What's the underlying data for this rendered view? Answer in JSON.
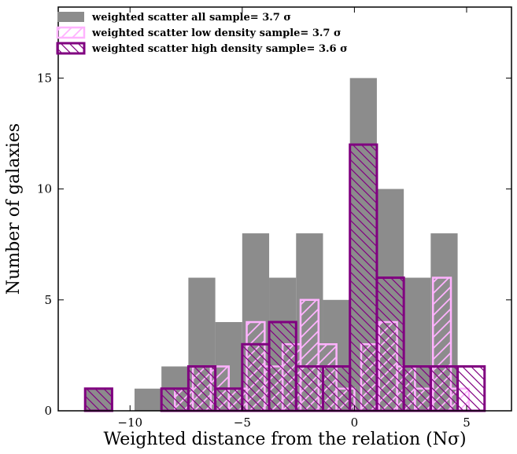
{
  "chart_data": {
    "type": "histogram",
    "xlabel": "Weighted distance from the relation (Nσ)",
    "ylabel": "Number of galaxies",
    "xlim": [
      -13.2,
      7.0
    ],
    "ylim": [
      0,
      18.2
    ],
    "xticks": [
      -10,
      -5,
      0,
      5
    ],
    "yticks": [
      0,
      5,
      10,
      15
    ],
    "colors": {
      "all": "#8c8c8c",
      "low": "#ffb3ff",
      "high": "#800080"
    },
    "legend": [
      {
        "series": "all",
        "label": "weighted scatter all sample= 3.7 σ"
      },
      {
        "series": "low",
        "label": "weighted scatter low density sample= 3.7 σ"
      },
      {
        "series": "high",
        "label": "weighted scatter high density sample= 3.6 σ"
      }
    ],
    "series": [
      {
        "name": "all",
        "style": "filled",
        "bins": [
          {
            "x0": -12.0,
            "x1": -10.8,
            "count": 1
          },
          {
            "x0": -9.8,
            "x1": -8.6,
            "count": 1
          },
          {
            "x0": -8.6,
            "x1": -7.4,
            "count": 2
          },
          {
            "x0": -7.4,
            "x1": -6.2,
            "count": 6
          },
          {
            "x0": -6.2,
            "x1": -5.0,
            "count": 4
          },
          {
            "x0": -5.0,
            "x1": -3.8,
            "count": 8
          },
          {
            "x0": -3.8,
            "x1": -2.6,
            "count": 6
          },
          {
            "x0": -2.6,
            "x1": -1.4,
            "count": 8
          },
          {
            "x0": -1.4,
            "x1": -0.2,
            "count": 5
          },
          {
            "x0": -0.2,
            "x1": 1.0,
            "count": 15
          },
          {
            "x0": 1.0,
            "x1": 2.2,
            "count": 10
          },
          {
            "x0": 2.2,
            "x1": 3.4,
            "count": 6
          },
          {
            "x0": 3.4,
            "x1": 4.6,
            "count": 8
          }
        ]
      },
      {
        "name": "low",
        "style": "hatch-forward",
        "bins": [
          {
            "x0": -8.0,
            "x1": -7.2,
            "count": 1
          },
          {
            "x0": -7.2,
            "x1": -6.4,
            "count": 2
          },
          {
            "x0": -6.4,
            "x1": -5.6,
            "count": 2
          },
          {
            "x0": -5.6,
            "x1": -4.8,
            "count": 1
          },
          {
            "x0": -4.8,
            "x1": -4.0,
            "count": 4
          },
          {
            "x0": -4.0,
            "x1": -3.2,
            "count": 2
          },
          {
            "x0": -3.2,
            "x1": -2.4,
            "count": 3
          },
          {
            "x0": -2.4,
            "x1": -1.6,
            "count": 5
          },
          {
            "x0": -1.6,
            "x1": -0.8,
            "count": 3
          },
          {
            "x0": -0.8,
            "x1": 0.0,
            "count": 1
          },
          {
            "x0": 0.3,
            "x1": 1.1,
            "count": 3
          },
          {
            "x0": 1.1,
            "x1": 1.9,
            "count": 4
          },
          {
            "x0": 1.9,
            "x1": 2.7,
            "count": 2
          },
          {
            "x0": 2.7,
            "x1": 3.5,
            "count": 1
          },
          {
            "x0": 3.5,
            "x1": 4.3,
            "count": 6
          },
          {
            "x0": 4.3,
            "x1": 5.1,
            "count": 1
          }
        ]
      },
      {
        "name": "high",
        "style": "hatch-back",
        "bins": [
          {
            "x0": -12.0,
            "x1": -10.8,
            "count": 1
          },
          {
            "x0": -8.6,
            "x1": -7.4,
            "count": 1
          },
          {
            "x0": -7.4,
            "x1": -6.2,
            "count": 2
          },
          {
            "x0": -6.2,
            "x1": -5.0,
            "count": 1
          },
          {
            "x0": -5.0,
            "x1": -3.8,
            "count": 3
          },
          {
            "x0": -3.8,
            "x1": -2.6,
            "count": 4
          },
          {
            "x0": -2.6,
            "x1": -1.4,
            "count": 2
          },
          {
            "x0": -1.4,
            "x1": -0.2,
            "count": 2
          },
          {
            "x0": -0.2,
            "x1": 1.0,
            "count": 12
          },
          {
            "x0": 1.0,
            "x1": 2.2,
            "count": 6
          },
          {
            "x0": 2.2,
            "x1": 3.4,
            "count": 2
          },
          {
            "x0": 3.4,
            "x1": 4.6,
            "count": 2
          },
          {
            "x0": 4.6,
            "x1": 5.8,
            "count": 2
          }
        ]
      }
    ]
  }
}
